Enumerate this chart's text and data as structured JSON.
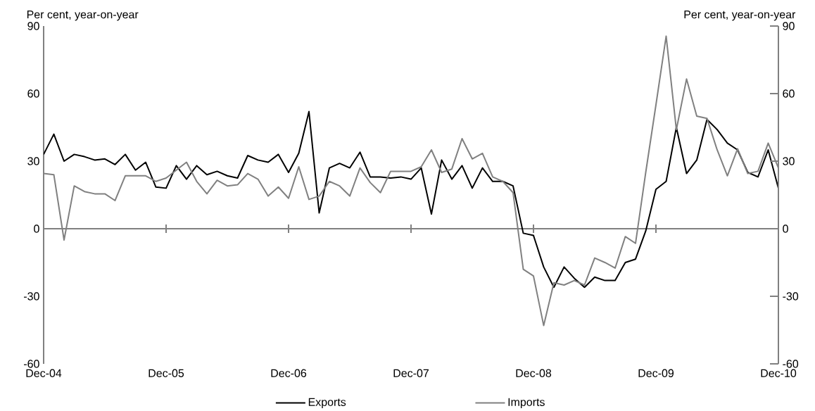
{
  "chart_data": {
    "type": "line",
    "ylabel": "Per cent, year-on-year",
    "y2label": "Per cent, year-on-year",
    "x": [
      "2004-12",
      "2005-01",
      "2005-02",
      "2005-03",
      "2005-04",
      "2005-05",
      "2005-06",
      "2005-07",
      "2005-08",
      "2005-09",
      "2005-10",
      "2005-11",
      "2005-12",
      "2006-01",
      "2006-02",
      "2006-03",
      "2006-04",
      "2006-05",
      "2006-06",
      "2006-07",
      "2006-08",
      "2006-09",
      "2006-10",
      "2006-11",
      "2006-12",
      "2007-01",
      "2007-02",
      "2007-03",
      "2007-04",
      "2007-05",
      "2007-06",
      "2007-07",
      "2007-08",
      "2007-09",
      "2007-10",
      "2007-11",
      "2007-12",
      "2008-01",
      "2008-02",
      "2008-03",
      "2008-04",
      "2008-05",
      "2008-06",
      "2008-07",
      "2008-08",
      "2008-09",
      "2008-10",
      "2008-11",
      "2008-12",
      "2009-01",
      "2009-02",
      "2009-03",
      "2009-04",
      "2009-05",
      "2009-06",
      "2009-07",
      "2009-08",
      "2009-09",
      "2009-10",
      "2009-11",
      "2009-12",
      "2010-01",
      "2010-02",
      "2010-03",
      "2010-04",
      "2010-05",
      "2010-06",
      "2010-07",
      "2010-08",
      "2010-09",
      "2010-10",
      "2010-11",
      "2010-12"
    ],
    "series": [
      {
        "name": "Exports",
        "color": "#000000",
        "values": [
          33,
          42,
          30,
          33,
          32,
          30.5,
          31,
          28.5,
          33,
          26,
          29.5,
          18.5,
          18,
          28,
          22,
          28,
          24,
          25.5,
          23.5,
          22.5,
          32.5,
          30.5,
          29.5,
          33,
          25,
          33.5,
          52,
          7,
          27,
          29,
          27,
          34,
          23,
          23,
          22.5,
          23,
          22,
          27,
          6.5,
          30.5,
          22,
          28,
          18,
          27,
          21,
          21,
          19,
          -2,
          -3,
          -17,
          -26,
          -17,
          -22,
          -26,
          -21.5,
          -23,
          -23,
          -15,
          -13.5,
          -1,
          17.5,
          21,
          45,
          24.5,
          30.5,
          48.5,
          44,
          38,
          35,
          25,
          23,
          35,
          18
        ]
      },
      {
        "name": "Imports",
        "color": "#808080",
        "values": [
          24.5,
          24,
          -5,
          19,
          16.5,
          15.5,
          15.5,
          12.5,
          23.5,
          23.5,
          23.5,
          21,
          22.5,
          26,
          29.5,
          21,
          15.5,
          21.5,
          19,
          19.5,
          24.5,
          22,
          14.5,
          18.5,
          13.5,
          27.5,
          13,
          14.5,
          21,
          19,
          14.5,
          27,
          20.5,
          16,
          25.5,
          25.5,
          25.5,
          27.5,
          35,
          25,
          26.5,
          40,
          31,
          33.5,
          23,
          21,
          16,
          -18,
          -21,
          -43,
          -24,
          -25,
          -23,
          -25,
          -13,
          -15,
          -17.5,
          -3.5,
          -6.5,
          25,
          55,
          85.5,
          44,
          66.5,
          50,
          49,
          35,
          23.5,
          35.5,
          24.5,
          25.5,
          38,
          27
        ]
      }
    ],
    "xlim": [
      "2004-12",
      "2010-12"
    ],
    "xticks": [
      {
        "value": "2004-12",
        "label": "Dec-04"
      },
      {
        "value": "2005-12",
        "label": "Dec-05"
      },
      {
        "value": "2006-12",
        "label": "Dec-06"
      },
      {
        "value": "2007-12",
        "label": "Dec-07"
      },
      {
        "value": "2008-12",
        "label": "Dec-08"
      },
      {
        "value": "2009-12",
        "label": "Dec-09"
      },
      {
        "value": "2010-12",
        "label": "Dec-10"
      }
    ],
    "ylim": [
      -60,
      90
    ],
    "yticks": [
      -60,
      -30,
      0,
      30,
      60,
      90
    ],
    "y2lim": [
      -60,
      90
    ],
    "y2ticks": [
      -60,
      -30,
      0,
      30,
      60,
      90
    ],
    "ref_lines": [
      {
        "axis": "y",
        "value": 0,
        "color": "#808080"
      }
    ],
    "legend": "bottom",
    "grid": false,
    "marker": "none",
    "line_style": "solid"
  }
}
